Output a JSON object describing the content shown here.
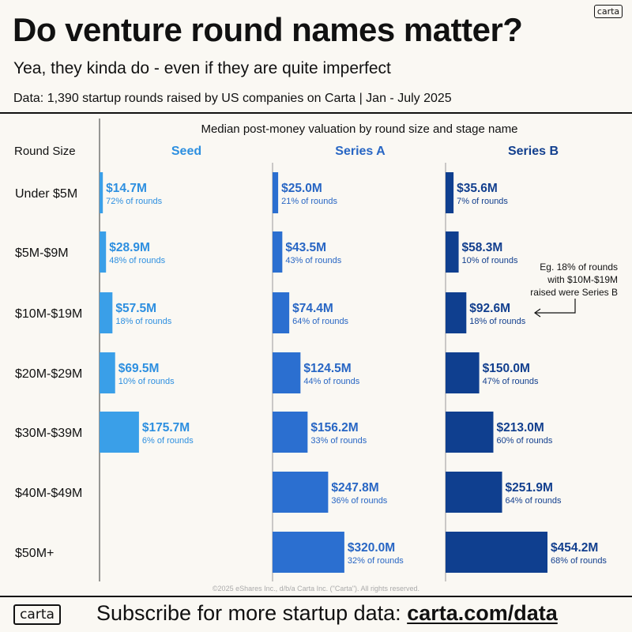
{
  "brand": {
    "logo_text": "carta"
  },
  "header": {
    "title": "Do venture round names matter?",
    "subtitle": "Yea, they kinda do - even if they are quite imperfect",
    "source": "Data: 1,390 startup rounds raised by US companies on Carta | Jan - July 2025"
  },
  "footer": {
    "copyright": "©2025 eShares Inc., d/b/a Carta Inc. (\"Carta\"). All rights reserved.",
    "cta_text": "Subscribe for more startup data: ",
    "cta_link": "carta.com/data"
  },
  "chart_data": {
    "type": "bar",
    "orientation": "horizontal",
    "title": "Median post-money valuation by round size and stage name",
    "row_header": "Round Size",
    "categories": [
      "Under $5M",
      "$5M-$9M",
      "$10M-$19M",
      "$20M-$29M",
      "$30M-$39M",
      "$40M-$49M",
      "$50M+"
    ],
    "pct_suffix": " of rounds",
    "series": [
      {
        "name": "Seed",
        "color": "#3a9fe8",
        "label_color": "#2d8fe0",
        "values": [
          14.7,
          28.9,
          57.5,
          69.5,
          175.7,
          null,
          null
        ],
        "labels": [
          "$14.7M",
          "$28.9M",
          "$57.5M",
          "$69.5M",
          "$175.7M",
          null,
          null
        ],
        "pcts": [
          "72%",
          "48%",
          "18%",
          "10%",
          "6%",
          null,
          null
        ]
      },
      {
        "name": "Series A",
        "color": "#2b6fd0",
        "label_color": "#2866c4",
        "values": [
          25.0,
          43.5,
          74.4,
          124.5,
          156.2,
          247.8,
          320.0
        ],
        "labels": [
          "$25.0M",
          "$43.5M",
          "$74.4M",
          "$124.5M",
          "$156.2M",
          "$247.8M",
          "$320.0M"
        ],
        "pcts": [
          "21%",
          "43%",
          "64%",
          "44%",
          "33%",
          "36%",
          "32%"
        ]
      },
      {
        "name": "Series B",
        "color": "#0f3f8f",
        "label_color": "#123f8e",
        "values": [
          35.6,
          58.3,
          92.6,
          150.0,
          213.0,
          251.9,
          454.2
        ],
        "labels": [
          "$35.6M",
          "$58.3M",
          "$92.6M",
          "$150.0M",
          "$213.0M",
          "$251.9M",
          "$454.2M"
        ],
        "pcts": [
          "7%",
          "10%",
          "18%",
          "47%",
          "60%",
          "64%",
          "68%"
        ]
      }
    ],
    "annotation": {
      "lines": [
        "Eg. 18% of rounds",
        "with $10M-$19M",
        "raised were Series B"
      ],
      "series": "Series B",
      "category": "$10M-$19M"
    }
  }
}
